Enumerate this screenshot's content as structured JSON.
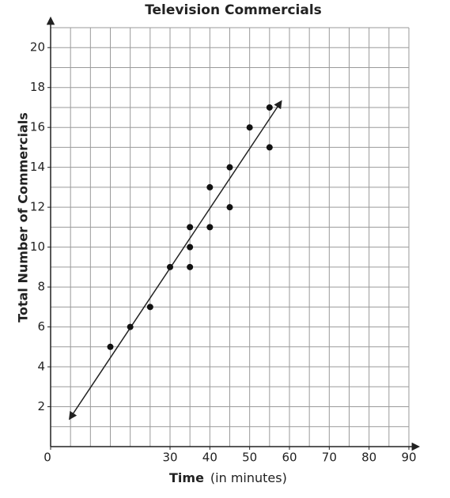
{
  "chart_data": {
    "type": "scatter",
    "title": "Television Commercials",
    "xlabel": "Time",
    "xlabel_note": "(in minutes)",
    "ylabel": "Total Number of Commercials",
    "x": [
      15,
      20,
      25,
      30,
      35,
      35,
      35,
      40,
      40,
      45,
      45,
      50,
      55,
      55
    ],
    "values": [
      5,
      6,
      7,
      9,
      11,
      10,
      9,
      13,
      11,
      14,
      12,
      16,
      17,
      15
    ],
    "color": "#111111",
    "trend_line": {
      "x": [
        4.8,
        57.9
      ],
      "y": [
        1.4,
        17.3
      ]
    },
    "xlim": [
      0,
      90
    ],
    "ylim": [
      0,
      21
    ],
    "xticks": [
      0,
      30,
      40,
      50,
      60,
      70,
      80,
      90
    ],
    "yticks": [
      2,
      4,
      6,
      8,
      10,
      12,
      14,
      16,
      18,
      20
    ],
    "grid": {
      "x": 5,
      "y": 1
    }
  }
}
